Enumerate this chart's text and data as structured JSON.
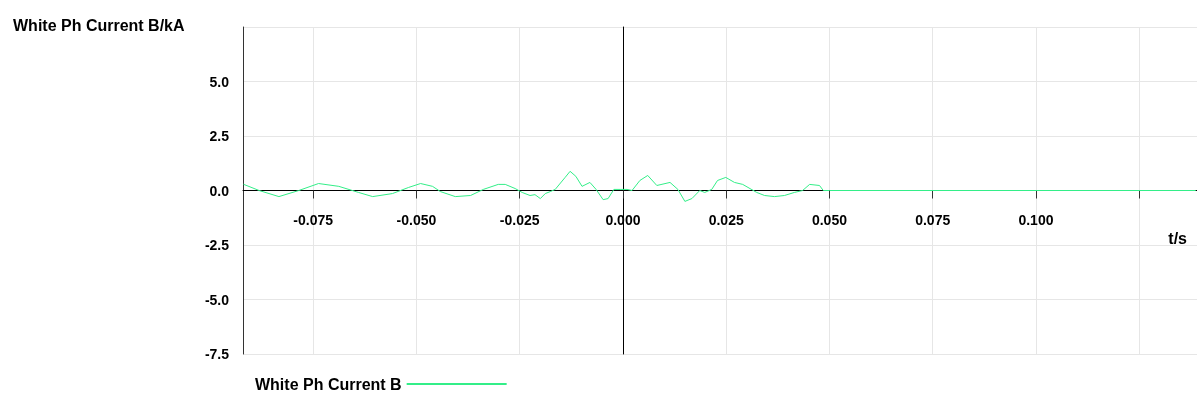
{
  "chart_data": {
    "type": "line",
    "xlabel": "t/s",
    "ylabel": "White Ph Current B/kA",
    "x": [
      -0.0918,
      -0.0881,
      -0.0833,
      -0.0785,
      -0.0737,
      -0.0688,
      -0.064,
      -0.0606,
      -0.0558,
      -0.0519,
      -0.049,
      -0.0461,
      -0.0442,
      -0.0406,
      -0.0369,
      -0.0338,
      -0.0302,
      -0.0285,
      -0.0261,
      -0.0244,
      -0.0225,
      -0.0213,
      -0.02,
      -0.0188,
      -0.0176,
      -0.0164,
      -0.014,
      -0.0128,
      -0.0114,
      -0.0099,
      -0.008,
      -0.0065,
      -0.0048,
      -0.0036,
      -0.0022,
      -0.0007,
      0.001,
      0.0022,
      0.0041,
      0.006,
      0.0082,
      0.0114,
      0.0133,
      0.015,
      0.0167,
      0.0186,
      0.0198,
      0.0215,
      0.0229,
      0.0249,
      0.027,
      0.029,
      0.0324,
      0.0343,
      0.0367,
      0.0391,
      0.0415,
      0.0435,
      0.0452,
      0.0476,
      0.0485,
      0.05,
      0.1386
    ],
    "series": [
      {
        "name": "White Ph Current B",
        "color": "#33ee88",
        "values": [
          0.28,
          0,
          -0.28,
          0,
          0.32,
          0.19,
          -0.09,
          -0.28,
          -0.14,
          0.14,
          0.32,
          0.19,
          -0.05,
          -0.28,
          -0.23,
          0.05,
          0.28,
          0.28,
          0.09,
          -0.09,
          -0.23,
          -0.19,
          -0.37,
          -0.14,
          -0.05,
          0.05,
          0.6,
          0.88,
          0.65,
          0.19,
          0.37,
          0.05,
          -0.42,
          -0.37,
          0.05,
          0.05,
          0.05,
          0,
          0.46,
          0.69,
          0.23,
          0.37,
          0.05,
          -0.5,
          -0.37,
          0,
          -0.09,
          0.05,
          0.46,
          0.6,
          0.37,
          0.28,
          -0.09,
          -0.23,
          -0.28,
          -0.23,
          -0.09,
          0,
          0.28,
          0.23,
          0,
          0,
          0
        ]
      }
    ],
    "xlim": [
      -0.092,
      0.139
    ],
    "xticks": [
      {
        "value": -0.075,
        "label": "-0.075"
      },
      {
        "value": -0.05,
        "label": "-0.050"
      },
      {
        "value": -0.025,
        "label": "-0.025"
      },
      {
        "value": 0,
        "label": "0.000"
      },
      {
        "value": 0.025,
        "label": "0.025"
      },
      {
        "value": 0.05,
        "label": "0.050"
      },
      {
        "value": 0.075,
        "label": "0.075"
      },
      {
        "value": 0.1,
        "label": "0.100"
      },
      {
        "value": 0.125,
        "label": null
      }
    ],
    "ylim": [
      -7.5,
      7.5
    ],
    "yticks": [
      {
        "value": -7.5,
        "label": "-7.5"
      },
      {
        "value": -5,
        "label": "-5.0"
      },
      {
        "value": -2.5,
        "label": "-2.5"
      },
      {
        "value": 0,
        "label": "0.0"
      },
      {
        "value": 2.5,
        "label": "2.5"
      },
      {
        "value": 5,
        "label": "5.0"
      },
      {
        "value": 7.5,
        "label": null
      }
    ],
    "grid": true,
    "legend": "bottom left",
    "marker": "none",
    "line_style": "solid"
  }
}
